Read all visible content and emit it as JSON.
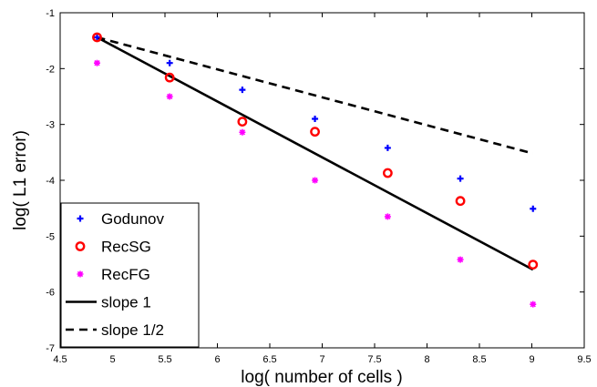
{
  "chart_data": {
    "type": "scatter",
    "xlabel": "log( number of cells )",
    "ylabel": "log( L1 error)",
    "xlim": [
      4.5,
      9.5
    ],
    "ylim": [
      -7,
      -1
    ],
    "x_ticks": [
      "4.5",
      "5",
      "5.5",
      "6",
      "6.5",
      "7",
      "7.5",
      "8",
      "8.5",
      "9",
      "9.5"
    ],
    "y_ticks": [
      "-1",
      "-2",
      "-3",
      "-4",
      "-5",
      "-6",
      "-7"
    ],
    "grid": false,
    "legend_position": "bottom-left",
    "series": [
      {
        "name": "Godunov",
        "marker": "plus",
        "color": "#0000ff",
        "x": [
          4.852,
          5.545,
          6.238,
          6.931,
          7.625,
          8.318,
          9.011
        ],
        "y": [
          -1.44,
          -1.9,
          -2.38,
          -2.9,
          -3.42,
          -3.97,
          -4.51
        ]
      },
      {
        "name": "RecSG",
        "marker": "circle",
        "color": "#ff0000",
        "x": [
          4.852,
          5.545,
          6.238,
          6.931,
          7.625,
          8.318,
          9.011
        ],
        "y": [
          -1.44,
          -2.16,
          -2.95,
          -3.13,
          -3.87,
          -4.37,
          -5.51
        ]
      },
      {
        "name": "RecFG",
        "marker": "asterisk",
        "color": "#ff00ff",
        "x": [
          4.852,
          5.545,
          6.238,
          6.931,
          7.625,
          8.318,
          9.011
        ],
        "y": [
          -1.9,
          -2.5,
          -3.14,
          -4.0,
          -4.65,
          -5.42,
          -6.22
        ]
      },
      {
        "name": "slope 1",
        "line": "solid",
        "color": "#000000",
        "x": [
          4.852,
          9.011
        ],
        "y": [
          -1.44,
          -5.6
        ]
      },
      {
        "name": "slope 1/2",
        "line": "dashed",
        "color": "#000000",
        "x": [
          4.852,
          9.011
        ],
        "y": [
          -1.44,
          -3.52
        ]
      }
    ]
  }
}
